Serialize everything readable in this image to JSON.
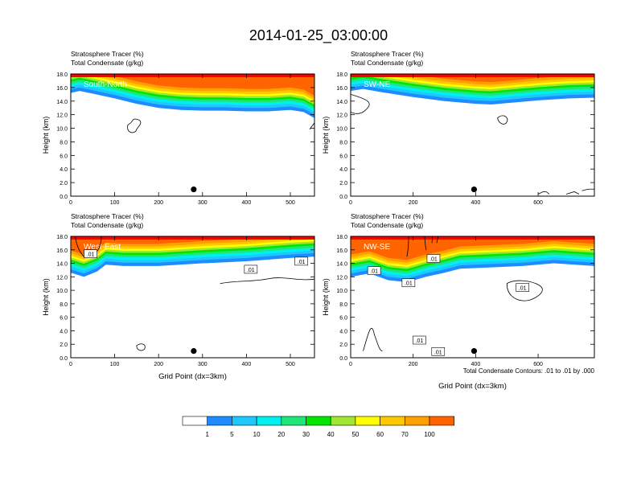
{
  "title": "2014-01-25_03:00:00",
  "colors": {
    "levels": [
      "#ffffff",
      "#1e8cff",
      "#1ec8ff",
      "#00f0f0",
      "#1ee678",
      "#00e600",
      "#a0e632",
      "#ffff00",
      "#ffc800",
      "#ffa000",
      "#ff6400",
      "#ff0000"
    ],
    "contour": "#000000"
  },
  "colorbar": {
    "labels": [
      "1",
      "5",
      "10",
      "20",
      "30",
      "40",
      "50",
      "60",
      "70",
      "100"
    ]
  },
  "contour_note": "Total Condensate Contours: .01 to .01 by .000",
  "chart_data": [
    {
      "type": "contour",
      "panel": "top-left",
      "label": "South-North",
      "title_line1": "Stratosphere Tracer   (%)",
      "title_line2": "Total Condensate   (g/kg)",
      "ylabel": "Height (km)",
      "xlabel": "",
      "xlim": [
        0,
        555
      ],
      "ylim": [
        0,
        18
      ],
      "xticks": [
        0,
        100,
        200,
        300,
        400,
        500
      ],
      "yticks": [
        "0.0",
        "2.0",
        "4.0",
        "6.0",
        "8.0",
        "10.0",
        "12.0",
        "14.0",
        "16.0",
        "18.0"
      ],
      "marker": {
        "x": 280,
        "y": 1.0
      },
      "tracer_base_km": [
        [
          0,
          15.2
        ],
        [
          20,
          15.5
        ],
        [
          50,
          15.1
        ],
        [
          100,
          14.4
        ],
        [
          150,
          13.6
        ],
        [
          200,
          13.0
        ],
        [
          250,
          12.7
        ],
        [
          300,
          12.6
        ],
        [
          350,
          12.6
        ],
        [
          400,
          12.5
        ],
        [
          450,
          12.5
        ],
        [
          500,
          12.7
        ],
        [
          530,
          12.4
        ],
        [
          555,
          11.5
        ]
      ],
      "contour_label_points": []
    },
    {
      "type": "contour",
      "panel": "top-right",
      "label": "SW-NE",
      "title_line1": "Stratosphere Tracer   (%)",
      "title_line2": "Total Condensate   (g/kg)",
      "ylabel": "Height (km)",
      "xlabel": "",
      "xlim": [
        0,
        780
      ],
      "ylim": [
        0,
        18
      ],
      "xticks": [
        0,
        200,
        400,
        600
      ],
      "yticks": [
        "0.0",
        "2.0",
        "4.0",
        "6.0",
        "8.0",
        "10.0",
        "12.0",
        "14.0",
        "16.0",
        "18.0"
      ],
      "marker": {
        "x": 395,
        "y": 1.0
      },
      "tracer_base_km": [
        [
          0,
          15.5
        ],
        [
          40,
          15.8
        ],
        [
          100,
          15.3
        ],
        [
          200,
          14.6
        ],
        [
          300,
          14.0
        ],
        [
          400,
          13.6
        ],
        [
          450,
          13.5
        ],
        [
          500,
          13.7
        ],
        [
          600,
          14.1
        ],
        [
          700,
          14.4
        ],
        [
          780,
          14.5
        ]
      ],
      "contour_label_points": []
    },
    {
      "type": "contour",
      "panel": "bottom-left",
      "label": "West-East",
      "title_line1": "Stratosphere Tracer   (%)",
      "title_line2": "Total Condensate   (g/kg)",
      "ylabel": "Height (km)",
      "xlabel": "Grid Point (dx=3km)",
      "xlim": [
        0,
        555
      ],
      "ylim": [
        0,
        18
      ],
      "xticks": [
        0,
        100,
        200,
        300,
        400,
        500
      ],
      "yticks": [
        "0.0",
        "2.0",
        "4.0",
        "6.0",
        "8.0",
        "10.0",
        "12.0",
        "14.0",
        "16.0",
        "18.0"
      ],
      "marker": {
        "x": 280,
        "y": 1.0
      },
      "tracer_base_km": [
        [
          0,
          12.6
        ],
        [
          30,
          12.0
        ],
        [
          60,
          12.8
        ],
        [
          80,
          13.8
        ],
        [
          120,
          13.6
        ],
        [
          200,
          13.6
        ],
        [
          300,
          14.0
        ],
        [
          400,
          14.3
        ],
        [
          500,
          14.8
        ],
        [
          555,
          15.0
        ]
      ],
      "contour_label_points": [
        [
          45,
          15.3,
          ".01"
        ],
        [
          410,
          13.0,
          ".01"
        ],
        [
          525,
          14.2,
          ".01"
        ]
      ]
    },
    {
      "type": "contour",
      "panel": "bottom-right",
      "label": "NW-SE",
      "title_line1": "Stratosphere Tracer   (%)",
      "title_line2": "Total Condensate   (g/kg)",
      "ylabel": "Height (km)",
      "xlabel": "Grid Point (dx=3km)",
      "xlim": [
        0,
        780
      ],
      "ylim": [
        0,
        18
      ],
      "xticks": [
        0,
        200,
        400,
        600
      ],
      "yticks": [
        "0.0",
        "2.0",
        "4.0",
        "6.0",
        "8.0",
        "10.0",
        "12.0",
        "14.0",
        "16.0",
        "18.0"
      ],
      "marker": {
        "x": 395,
        "y": 1.0
      },
      "tracer_base_km": [
        [
          0,
          12.0
        ],
        [
          60,
          12.5
        ],
        [
          120,
          11.5
        ],
        [
          180,
          11.2
        ],
        [
          240,
          12.0
        ],
        [
          300,
          12.6
        ],
        [
          350,
          13.2
        ],
        [
          450,
          13.4
        ],
        [
          550,
          13.6
        ],
        [
          650,
          14.0
        ],
        [
          780,
          13.6
        ]
      ],
      "contour_label_points": [
        [
          75,
          12.8,
          ".01"
        ],
        [
          185,
          11.0,
          ".01"
        ],
        [
          265,
          14.6,
          ".01"
        ],
        [
          550,
          10.3,
          ".01"
        ],
        [
          220,
          2.5,
          ".01"
        ],
        [
          280,
          0.8,
          ".01"
        ]
      ]
    }
  ]
}
